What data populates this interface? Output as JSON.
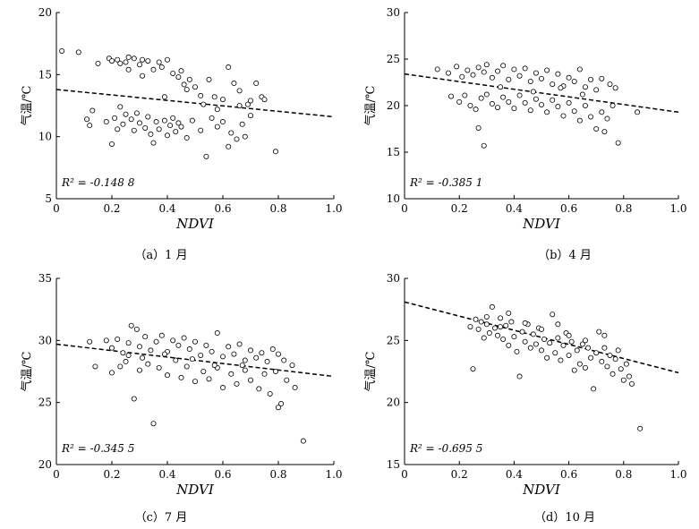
{
  "chart_data": [
    {
      "type": "scatter",
      "caption": "（a）1 月",
      "xlabel": "NDVI",
      "ylabel": "气温/℃",
      "xlim": [
        0,
        1.0
      ],
      "ylim": [
        5,
        20
      ],
      "xticks": [
        "0",
        "0.2",
        "0.4",
        "0.6",
        "0.8",
        "1.0"
      ],
      "yticks": [
        "5",
        "10",
        "15",
        "20"
      ],
      "r2_label": "R² = -0.148 8",
      "trendline": {
        "x": [
          0,
          1.0
        ],
        "y": [
          13.8,
          11.6
        ]
      },
      "points": [
        [
          0.02,
          16.9
        ],
        [
          0.08,
          16.8
        ],
        [
          0.13,
          12.1
        ],
        [
          0.15,
          15.9
        ],
        [
          0.19,
          16.3
        ],
        [
          0.2,
          16.1
        ],
        [
          0.22,
          16.2
        ],
        [
          0.23,
          15.9
        ],
        [
          0.25,
          16.0
        ],
        [
          0.26,
          16.4
        ],
        [
          0.28,
          16.3
        ],
        [
          0.3,
          15.8
        ],
        [
          0.31,
          16.2
        ],
        [
          0.33,
          16.1
        ],
        [
          0.35,
          15.4
        ],
        [
          0.37,
          16.0
        ],
        [
          0.38,
          15.6
        ],
        [
          0.4,
          16.2
        ],
        [
          0.42,
          15.1
        ],
        [
          0.44,
          14.8
        ],
        [
          0.45,
          15.3
        ],
        [
          0.46,
          14.2
        ],
        [
          0.48,
          14.6
        ],
        [
          0.5,
          14.0
        ],
        [
          0.52,
          13.3
        ],
        [
          0.55,
          14.6
        ],
        [
          0.57,
          13.2
        ],
        [
          0.6,
          13.0
        ],
        [
          0.62,
          15.6
        ],
        [
          0.64,
          14.3
        ],
        [
          0.66,
          13.7
        ],
        [
          0.69,
          12.6
        ],
        [
          0.72,
          14.3
        ],
        [
          0.74,
          13.2
        ],
        [
          0.11,
          11.4
        ],
        [
          0.12,
          10.9
        ],
        [
          0.18,
          11.2
        ],
        [
          0.2,
          9.4
        ],
        [
          0.21,
          11.5
        ],
        [
          0.22,
          10.6
        ],
        [
          0.24,
          11.0
        ],
        [
          0.25,
          11.8
        ],
        [
          0.27,
          11.4
        ],
        [
          0.28,
          10.5
        ],
        [
          0.29,
          11.9
        ],
        [
          0.3,
          11.1
        ],
        [
          0.32,
          10.7
        ],
        [
          0.33,
          11.6
        ],
        [
          0.34,
          10.2
        ],
        [
          0.35,
          9.5
        ],
        [
          0.36,
          11.2
        ],
        [
          0.37,
          10.6
        ],
        [
          0.39,
          11.3
        ],
        [
          0.4,
          10.1
        ],
        [
          0.41,
          10.9
        ],
        [
          0.42,
          11.5
        ],
        [
          0.43,
          10.4
        ],
        [
          0.44,
          11.1
        ],
        [
          0.45,
          10.8
        ],
        [
          0.47,
          9.9
        ],
        [
          0.49,
          11.3
        ],
        [
          0.52,
          10.5
        ],
        [
          0.54,
          8.4
        ],
        [
          0.56,
          11.5
        ],
        [
          0.58,
          10.8
        ],
        [
          0.6,
          11.2
        ],
        [
          0.62,
          9.2
        ],
        [
          0.63,
          10.3
        ],
        [
          0.65,
          9.8
        ],
        [
          0.67,
          11.0
        ],
        [
          0.68,
          10.0
        ],
        [
          0.7,
          11.7
        ],
        [
          0.79,
          8.8
        ],
        [
          0.23,
          12.4
        ],
        [
          0.26,
          15.4
        ],
        [
          0.31,
          14.9
        ],
        [
          0.39,
          13.2
        ],
        [
          0.47,
          13.8
        ],
        [
          0.53,
          12.6
        ],
        [
          0.58,
          12.2
        ],
        [
          0.66,
          12.5
        ],
        [
          0.7,
          12.9
        ],
        [
          0.75,
          13.0
        ]
      ]
    },
    {
      "type": "scatter",
      "caption": "（b）4 月",
      "xlabel": "NDVI",
      "ylabel": "气温/℃",
      "xlim": [
        0,
        1.0
      ],
      "ylim": [
        10,
        30
      ],
      "xticks": [
        "0",
        "0.2",
        "0.4",
        "0.6",
        "0.8",
        "1.0"
      ],
      "yticks": [
        "10",
        "15",
        "20",
        "25",
        "30"
      ],
      "r2_label": "R² = -0.385 1",
      "trendline": {
        "x": [
          0,
          1.0
        ],
        "y": [
          23.4,
          19.3
        ]
      },
      "points": [
        [
          0.12,
          23.9
        ],
        [
          0.16,
          23.5
        ],
        [
          0.19,
          24.2
        ],
        [
          0.21,
          23.1
        ],
        [
          0.23,
          23.8
        ],
        [
          0.25,
          23.3
        ],
        [
          0.27,
          24.1
        ],
        [
          0.29,
          23.6
        ],
        [
          0.3,
          24.4
        ],
        [
          0.32,
          23.0
        ],
        [
          0.34,
          23.7
        ],
        [
          0.36,
          24.3
        ],
        [
          0.38,
          22.8
        ],
        [
          0.4,
          23.9
        ],
        [
          0.42,
          23.2
        ],
        [
          0.44,
          24.0
        ],
        [
          0.46,
          22.6
        ],
        [
          0.48,
          23.5
        ],
        [
          0.5,
          22.9
        ],
        [
          0.52,
          23.8
        ],
        [
          0.54,
          22.3
        ],
        [
          0.56,
          23.4
        ],
        [
          0.58,
          22.1
        ],
        [
          0.6,
          23.0
        ],
        [
          0.62,
          22.6
        ],
        [
          0.64,
          23.9
        ],
        [
          0.66,
          22.0
        ],
        [
          0.68,
          22.8
        ],
        [
          0.7,
          21.7
        ],
        [
          0.72,
          22.9
        ],
        [
          0.75,
          22.3
        ],
        [
          0.77,
          21.9
        ],
        [
          0.17,
          21.0
        ],
        [
          0.2,
          20.4
        ],
        [
          0.22,
          21.1
        ],
        [
          0.24,
          20.0
        ],
        [
          0.26,
          19.6
        ],
        [
          0.28,
          20.8
        ],
        [
          0.3,
          21.2
        ],
        [
          0.32,
          20.2
        ],
        [
          0.34,
          19.8
        ],
        [
          0.36,
          20.9
        ],
        [
          0.38,
          20.4
        ],
        [
          0.4,
          19.7
        ],
        [
          0.42,
          21.1
        ],
        [
          0.44,
          20.3
        ],
        [
          0.46,
          19.5
        ],
        [
          0.48,
          20.7
        ],
        [
          0.5,
          20.1
        ],
        [
          0.52,
          19.3
        ],
        [
          0.54,
          20.6
        ],
        [
          0.56,
          19.9
        ],
        [
          0.58,
          18.9
        ],
        [
          0.6,
          20.3
        ],
        [
          0.62,
          19.4
        ],
        [
          0.64,
          18.4
        ],
        [
          0.66,
          20.0
        ],
        [
          0.68,
          18.8
        ],
        [
          0.7,
          17.5
        ],
        [
          0.72,
          19.3
        ],
        [
          0.74,
          18.6
        ],
        [
          0.76,
          20.0
        ],
        [
          0.78,
          16.0
        ],
        [
          0.27,
          17.6
        ],
        [
          0.29,
          15.7
        ],
        [
          0.35,
          22.0
        ],
        [
          0.47,
          21.5
        ],
        [
          0.57,
          21.9
        ],
        [
          0.65,
          21.2
        ],
        [
          0.73,
          17.2
        ],
        [
          0.85,
          19.3
        ]
      ]
    },
    {
      "type": "scatter",
      "caption": "（c）7 月",
      "xlabel": "NDVI",
      "ylabel": "气温/℃",
      "xlim": [
        0,
        1.0
      ],
      "ylim": [
        20,
        35
      ],
      "xticks": [
        "0",
        "0.2",
        "0.4",
        "0.6",
        "0.8",
        "1.0"
      ],
      "yticks": [
        "20",
        "25",
        "30",
        "35"
      ],
      "r2_label": "R² = -0.345 5",
      "trendline": {
        "x": [
          0,
          1.0
        ],
        "y": [
          29.7,
          27.1
        ]
      },
      "points": [
        [
          0.12,
          29.9
        ],
        [
          0.14,
          27.9
        ],
        [
          0.18,
          30.0
        ],
        [
          0.2,
          29.4
        ],
        [
          0.22,
          30.1
        ],
        [
          0.24,
          29.0
        ],
        [
          0.26,
          29.8
        ],
        [
          0.27,
          31.2
        ],
        [
          0.29,
          30.9
        ],
        [
          0.3,
          29.5
        ],
        [
          0.32,
          30.3
        ],
        [
          0.34,
          29.2
        ],
        [
          0.36,
          29.9
        ],
        [
          0.38,
          30.4
        ],
        [
          0.4,
          29.1
        ],
        [
          0.42,
          30.0
        ],
        [
          0.44,
          29.6
        ],
        [
          0.46,
          30.2
        ],
        [
          0.48,
          29.3
        ],
        [
          0.5,
          29.9
        ],
        [
          0.52,
          28.8
        ],
        [
          0.54,
          29.6
        ],
        [
          0.56,
          29.1
        ],
        [
          0.58,
          30.6
        ],
        [
          0.6,
          28.7
        ],
        [
          0.62,
          29.5
        ],
        [
          0.64,
          28.9
        ],
        [
          0.66,
          29.7
        ],
        [
          0.68,
          28.4
        ],
        [
          0.7,
          29.2
        ],
        [
          0.72,
          28.6
        ],
        [
          0.74,
          29.0
        ],
        [
          0.76,
          28.3
        ],
        [
          0.78,
          29.3
        ],
        [
          0.8,
          28.9
        ],
        [
          0.82,
          28.4
        ],
        [
          0.85,
          28.0
        ],
        [
          0.2,
          27.4
        ],
        [
          0.23,
          27.9
        ],
        [
          0.25,
          28.3
        ],
        [
          0.28,
          25.3
        ],
        [
          0.3,
          27.6
        ],
        [
          0.33,
          28.1
        ],
        [
          0.35,
          23.3
        ],
        [
          0.37,
          27.8
        ],
        [
          0.4,
          27.2
        ],
        [
          0.43,
          28.4
        ],
        [
          0.45,
          27.0
        ],
        [
          0.47,
          27.9
        ],
        [
          0.5,
          26.7
        ],
        [
          0.53,
          27.5
        ],
        [
          0.55,
          26.9
        ],
        [
          0.58,
          27.8
        ],
        [
          0.6,
          26.2
        ],
        [
          0.63,
          27.3
        ],
        [
          0.65,
          26.5
        ],
        [
          0.68,
          27.6
        ],
        [
          0.7,
          26.8
        ],
        [
          0.73,
          26.1
        ],
        [
          0.75,
          27.3
        ],
        [
          0.77,
          25.7
        ],
        [
          0.8,
          24.6
        ],
        [
          0.81,
          24.9
        ],
        [
          0.83,
          26.8
        ],
        [
          0.86,
          26.2
        ],
        [
          0.89,
          21.9
        ],
        [
          0.26,
          28.8
        ],
        [
          0.31,
          28.6
        ],
        [
          0.39,
          28.9
        ],
        [
          0.49,
          28.5
        ],
        [
          0.57,
          28.0
        ],
        [
          0.67,
          28.0
        ],
        [
          0.79,
          27.5
        ]
      ]
    },
    {
      "type": "scatter",
      "caption": "（d）10 月",
      "xlabel": "NDVI",
      "ylabel": "气温/℃",
      "xlim": [
        0,
        1.0
      ],
      "ylim": [
        15,
        30
      ],
      "xticks": [
        "0",
        "0.2",
        "0.4",
        "0.6",
        "0.8",
        "1.0"
      ],
      "yticks": [
        "15",
        "20",
        "25",
        "30"
      ],
      "r2_label": "R² = -0.695 5",
      "trendline": {
        "x": [
          0,
          1.0
        ],
        "y": [
          28.1,
          22.4
        ]
      },
      "points": [
        [
          0.24,
          26.1
        ],
        [
          0.25,
          22.7
        ],
        [
          0.26,
          26.7
        ],
        [
          0.27,
          25.9
        ],
        [
          0.28,
          26.5
        ],
        [
          0.29,
          25.2
        ],
        [
          0.3,
          26.3
        ],
        [
          0.31,
          25.6
        ],
        [
          0.32,
          27.7
        ],
        [
          0.33,
          26.0
        ],
        [
          0.34,
          25.4
        ],
        [
          0.35,
          26.8
        ],
        [
          0.36,
          25.1
        ],
        [
          0.37,
          26.2
        ],
        [
          0.38,
          24.6
        ],
        [
          0.39,
          26.5
        ],
        [
          0.4,
          25.3
        ],
        [
          0.41,
          24.1
        ],
        [
          0.42,
          22.1
        ],
        [
          0.43,
          25.7
        ],
        [
          0.44,
          24.9
        ],
        [
          0.45,
          26.3
        ],
        [
          0.46,
          24.4
        ],
        [
          0.47,
          25.5
        ],
        [
          0.48,
          24.7
        ],
        [
          0.49,
          26.0
        ],
        [
          0.5,
          24.2
        ],
        [
          0.51,
          25.1
        ],
        [
          0.52,
          23.6
        ],
        [
          0.53,
          24.8
        ],
        [
          0.54,
          27.1
        ],
        [
          0.55,
          24.0
        ],
        [
          0.56,
          25.2
        ],
        [
          0.57,
          23.4
        ],
        [
          0.58,
          24.6
        ],
        [
          0.59,
          25.6
        ],
        [
          0.6,
          23.8
        ],
        [
          0.61,
          24.9
        ],
        [
          0.62,
          22.6
        ],
        [
          0.63,
          24.2
        ],
        [
          0.64,
          23.1
        ],
        [
          0.65,
          24.7
        ],
        [
          0.66,
          22.8
        ],
        [
          0.67,
          24.4
        ],
        [
          0.68,
          23.6
        ],
        [
          0.69,
          21.1
        ],
        [
          0.7,
          24.0
        ],
        [
          0.71,
          25.7
        ],
        [
          0.72,
          23.3
        ],
        [
          0.73,
          24.4
        ],
        [
          0.74,
          22.9
        ],
        [
          0.75,
          23.8
        ],
        [
          0.76,
          22.3
        ],
        [
          0.77,
          23.5
        ],
        [
          0.78,
          24.2
        ],
        [
          0.79,
          22.7
        ],
        [
          0.8,
          21.8
        ],
        [
          0.81,
          23.1
        ],
        [
          0.82,
          22.1
        ],
        [
          0.83,
          21.5
        ],
        [
          0.86,
          17.9
        ],
        [
          0.3,
          26.9
        ],
        [
          0.35,
          26.1
        ],
        [
          0.38,
          27.2
        ],
        [
          0.44,
          26.4
        ],
        [
          0.5,
          25.9
        ],
        [
          0.56,
          26.3
        ],
        [
          0.6,
          25.4
        ],
        [
          0.66,
          25.0
        ],
        [
          0.73,
          25.4
        ]
      ]
    }
  ]
}
